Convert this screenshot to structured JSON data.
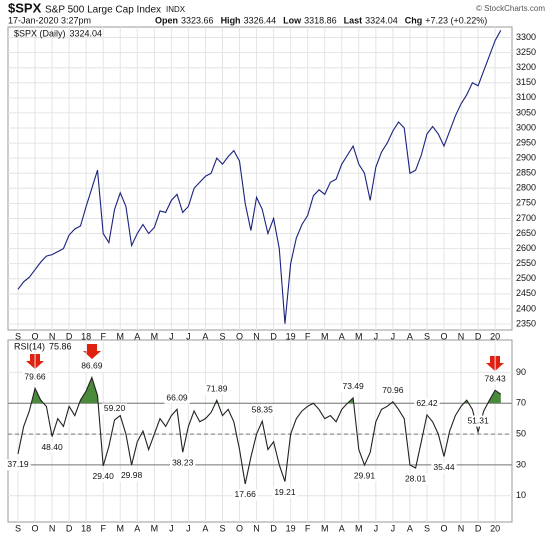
{
  "header": {
    "symbol": "$SPX",
    "name": "S&P 500 Large Cap Index",
    "exchange": "INDX",
    "date": "17-Jan-2020 3:27pm",
    "source": "© StockCharts.com",
    "quote": [
      {
        "label": "Open",
        "value": 3323.66
      },
      {
        "label": "High",
        "value": 3326.44
      },
      {
        "label": "Low",
        "value": 3318.86
      },
      {
        "label": "Last",
        "value": 3324.04
      },
      {
        "label": "Chg",
        "value": "+7.23 (+0.22%)"
      }
    ]
  },
  "chart_data": [
    {
      "type": "line",
      "color": "#1a237e",
      "categories": [
        "S",
        null,
        null,
        "O",
        null,
        null,
        "N",
        null,
        null,
        "D",
        null,
        null,
        "18",
        null,
        null,
        "F",
        null,
        null,
        "M",
        null,
        null,
        "A",
        null,
        null,
        "M",
        null,
        null,
        "J",
        null,
        null,
        "J",
        null,
        null,
        "A",
        null,
        null,
        "S",
        null,
        null,
        "O",
        null,
        null,
        "N",
        null,
        null,
        "D",
        null,
        null,
        "19",
        null,
        null,
        "F",
        null,
        null,
        "M",
        null,
        null,
        "A",
        null,
        null,
        "M",
        null,
        null,
        "J",
        null,
        null,
        "J",
        null,
        null,
        "A",
        null,
        null,
        "S",
        null,
        null,
        "O",
        null,
        null,
        "N",
        null,
        null,
        "D",
        null,
        null,
        "20",
        null
      ],
      "series": [
        {
          "name": "$SPX (Daily)",
          "color": "#1a237e",
          "values": [
            2465,
            2490,
            2505,
            2530,
            2555,
            2575,
            2580,
            2590,
            2600,
            2645,
            2665,
            2675,
            2740,
            2800,
            2860,
            2650,
            2620,
            2730,
            2785,
            2740,
            2610,
            2650,
            2680,
            2650,
            2670,
            2725,
            2720,
            2760,
            2780,
            2720,
            2740,
            2800,
            2820,
            2840,
            2850,
            2900,
            2880,
            2905,
            2925,
            2890,
            2750,
            2660,
            2770,
            2730,
            2650,
            2700,
            2600,
            2351,
            2550,
            2635,
            2680,
            2710,
            2775,
            2795,
            2780,
            2820,
            2830,
            2880,
            2910,
            2940,
            2880,
            2850,
            2760,
            2870,
            2920,
            2950,
            2990,
            3020,
            3000,
            2850,
            2860,
            2910,
            2980,
            3005,
            2980,
            2940,
            2990,
            3040,
            3080,
            3110,
            3150,
            3140,
            3190,
            3240,
            3290,
            3324.04
          ]
        }
      ],
      "ylim": [
        2330,
        3335
      ],
      "yticks": [
        2350,
        2400,
        2450,
        2500,
        2550,
        2600,
        2650,
        2700,
        2750,
        2800,
        2850,
        2900,
        2950,
        3000,
        3050,
        3100,
        3150,
        3200,
        3250,
        3300
      ],
      "grid": true
    },
    {
      "type": "line",
      "color": "#222222",
      "fill_color": "#4a8a3a",
      "overbought": 70,
      "oversold": 30,
      "midline": 50,
      "categories": [
        "S",
        null,
        null,
        "O",
        null,
        null,
        "N",
        null,
        null,
        "D",
        null,
        null,
        "18",
        null,
        null,
        "F",
        null,
        null,
        "M",
        null,
        null,
        "A",
        null,
        null,
        "M",
        null,
        null,
        "J",
        null,
        null,
        "J",
        null,
        null,
        "A",
        null,
        null,
        "S",
        null,
        null,
        "O",
        null,
        null,
        "N",
        null,
        null,
        "D",
        null,
        null,
        "19",
        null,
        null,
        "F",
        null,
        null,
        "M",
        null,
        null,
        "A",
        null,
        null,
        "M",
        null,
        null,
        "J",
        null,
        null,
        "J",
        null,
        null,
        "A",
        null,
        null,
        "S",
        null,
        null,
        "O",
        null,
        null,
        "N",
        null,
        null,
        "D",
        null,
        null,
        "20",
        null
      ],
      "series": [
        {
          "name": "RSI(14)",
          "color": "#222222",
          "values": [
            37.19,
            55,
            65,
            79.66,
            72,
            68,
            48.4,
            60,
            55,
            68,
            62,
            72,
            78,
            86.69,
            75,
            29.4,
            42,
            59.2,
            62,
            50,
            29.98,
            45,
            52,
            40,
            50,
            60,
            55,
            62,
            66.09,
            38.23,
            55,
            65,
            58,
            60,
            64,
            71.89,
            62,
            66,
            58,
            40,
            17.66,
            35,
            50,
            58.35,
            40,
            45,
            30,
            19.21,
            50,
            60,
            65,
            68,
            70,
            66,
            60,
            62,
            58,
            66,
            70,
            73.49,
            40,
            29.91,
            38,
            58,
            66,
            68,
            70.96,
            66,
            60,
            30,
            28.01,
            45,
            62.42,
            58,
            50,
            35.44,
            52,
            62,
            68,
            72,
            66,
            51.31,
            65,
            72,
            78.43,
            75.86
          ],
          "value_labels": [
            "37.19",
            null,
            null,
            "79.66",
            null,
            null,
            "48.40",
            null,
            null,
            null,
            null,
            null,
            null,
            "86.69",
            null,
            "29.40",
            null,
            "59.20",
            null,
            null,
            "29.98",
            null,
            null,
            null,
            null,
            null,
            null,
            null,
            "66.09",
            "38.23",
            null,
            null,
            null,
            null,
            null,
            "71.89",
            null,
            null,
            null,
            null,
            "17.66",
            null,
            null,
            "58.35",
            null,
            null,
            null,
            "19.21",
            null,
            null,
            null,
            null,
            null,
            null,
            null,
            null,
            null,
            null,
            null,
            "73.49",
            null,
            "29.91",
            null,
            null,
            null,
            null,
            "70.96",
            null,
            null,
            null,
            "28.01",
            null,
            "62.42",
            null,
            null,
            "35.44",
            null,
            null,
            null,
            null,
            null,
            "51.31",
            null,
            null,
            "78.43",
            null
          ]
        }
      ],
      "ylim": [
        -7,
        111
      ],
      "yticks": [
        10,
        30,
        50,
        70,
        90
      ],
      "grid": true
    }
  ]
}
